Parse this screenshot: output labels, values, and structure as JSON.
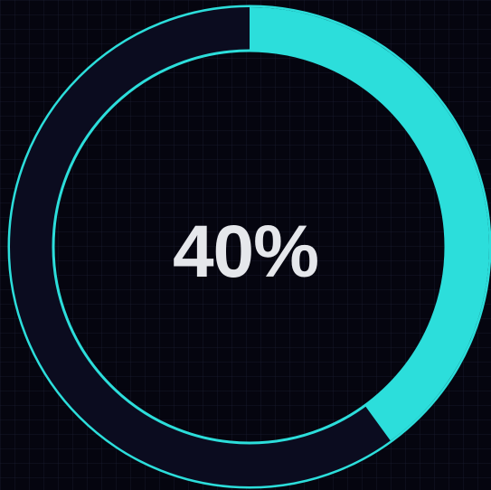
{
  "progress": {
    "value": 0.4,
    "label": "40%"
  },
  "colors": {
    "background": "#05050f",
    "track": "#0b0c1f",
    "accent": "#2cdedb",
    "text": "#e5e7eb"
  }
}
